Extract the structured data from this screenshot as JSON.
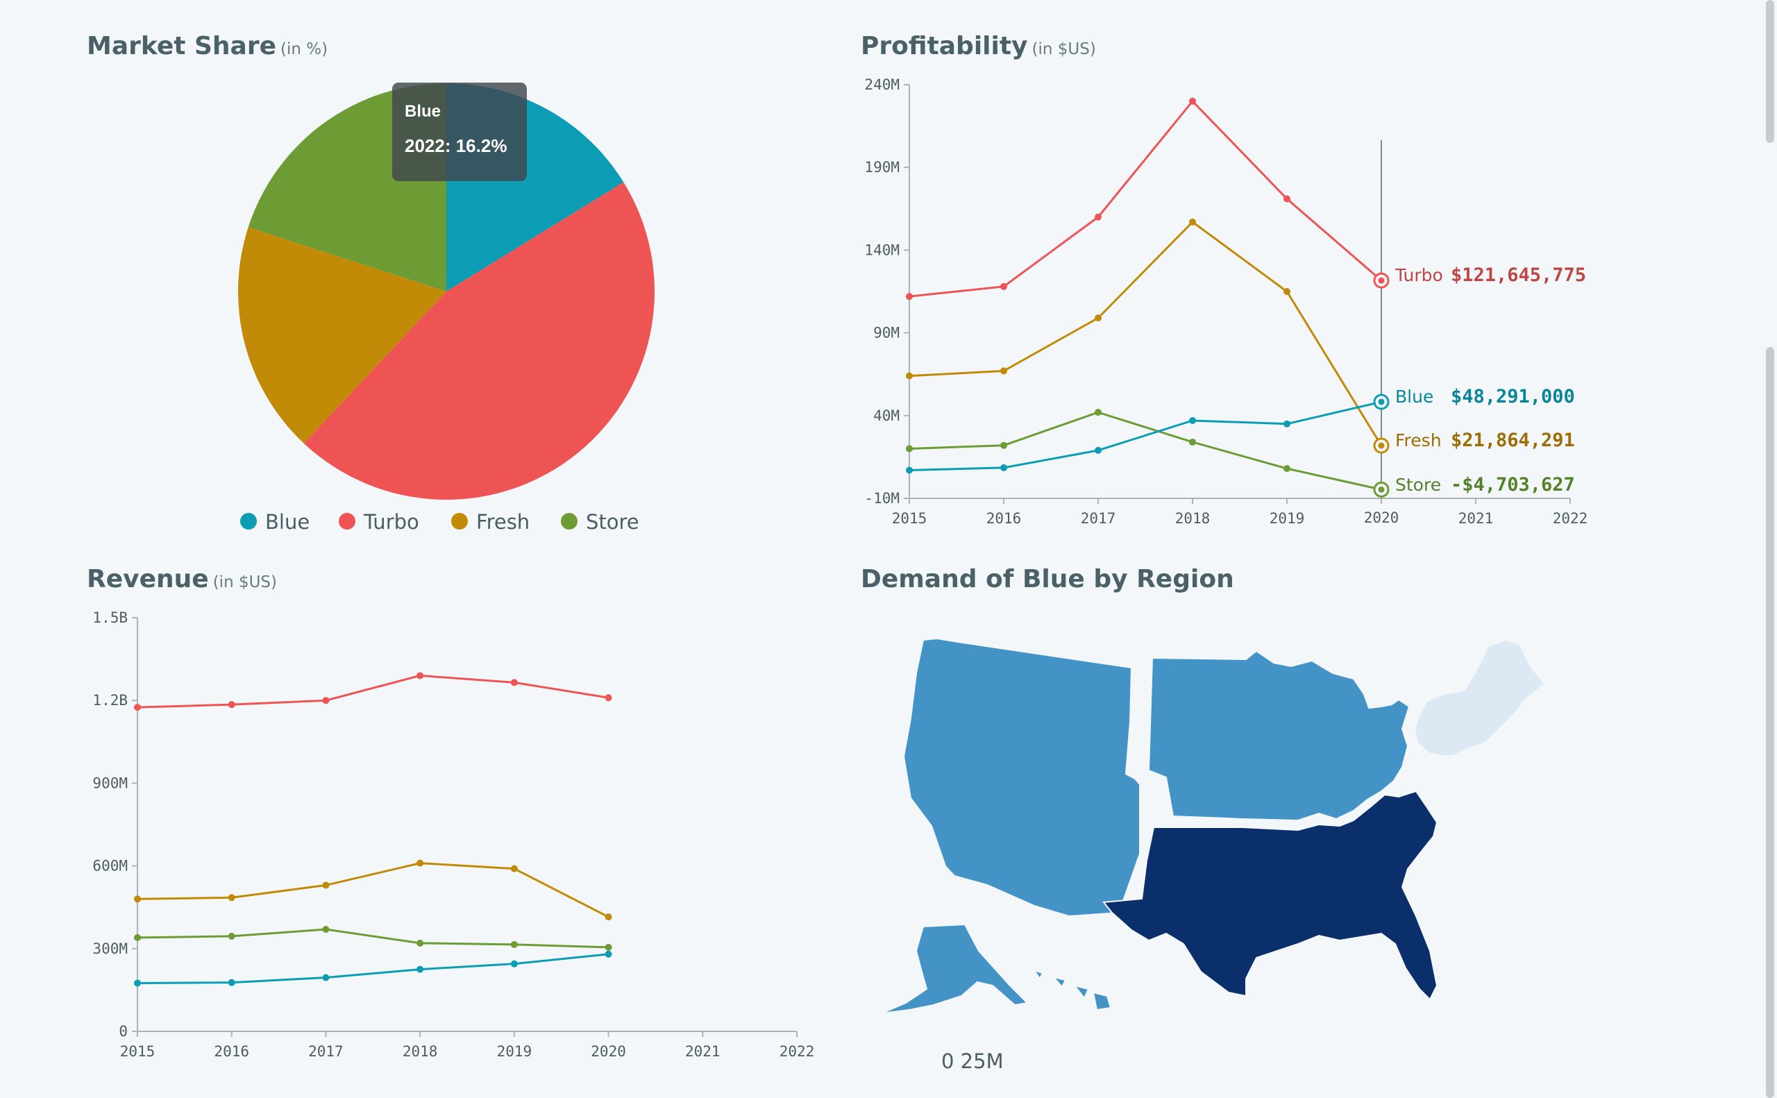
{
  "colors": {
    "Blue": "#0c9db5",
    "Turbo": "#ee5453",
    "Fresh": "#c18a07",
    "Store": "#6d9c34"
  },
  "market_share": {
    "title": "Market Share",
    "unit": "(in %)",
    "tooltip": {
      "series": "Blue",
      "text": "2022: 16.2%"
    },
    "legend": [
      "Blue",
      "Turbo",
      "Fresh",
      "Store"
    ]
  },
  "profitability": {
    "title": "Profitability",
    "unit": "(in $US)",
    "hover_year": "2020",
    "end_labels": [
      {
        "series": "Turbo",
        "name": "Turbo",
        "value": "$121,645,775"
      },
      {
        "series": "Blue",
        "name": "Blue",
        "value": "$48,291,000"
      },
      {
        "series": "Fresh",
        "name": "Fresh",
        "value": "$21,864,291"
      },
      {
        "series": "Store",
        "name": "Store",
        "value": "-$4,703,627"
      }
    ]
  },
  "revenue": {
    "title": "Revenue",
    "unit": "(in $US)"
  },
  "demand": {
    "title": "Demand of Blue by Region",
    "scale_label": "0  25M",
    "regions": [
      {
        "name": "West",
        "level": 0.55,
        "color": "#4393c6"
      },
      {
        "name": "Midwest",
        "level": 0.55,
        "color": "#4393c6"
      },
      {
        "name": "South",
        "level": 1.0,
        "color": "#0b2f6a"
      },
      {
        "name": "Northeast",
        "level": 0.1,
        "color": "#dce8f4"
      }
    ]
  },
  "chart_data": [
    {
      "type": "pie",
      "title": "Market Share",
      "unit": "%",
      "slices": [
        {
          "name": "Blue",
          "value": 16.2
        },
        {
          "name": "Turbo",
          "value": 45.8
        },
        {
          "name": "Fresh",
          "value": 18.0
        },
        {
          "name": "Store",
          "value": 20.0
        }
      ],
      "legend_position": "bottom"
    },
    {
      "type": "line",
      "title": "Profitability",
      "unit": "$US",
      "x": [
        2015,
        2016,
        2017,
        2018,
        2019,
        2020
      ],
      "x_ticks": [
        2015,
        2016,
        2017,
        2018,
        2019,
        2020,
        2021,
        2022
      ],
      "xlim": [
        2015,
        2022
      ],
      "ylim": [
        -10000000,
        240000000
      ],
      "y_ticks": [
        -10000000,
        40000000,
        90000000,
        140000000,
        190000000,
        240000000
      ],
      "y_tick_labels": [
        "-10M",
        "40M",
        "90M",
        "140M",
        "190M",
        "240M"
      ],
      "series": [
        {
          "name": "Turbo",
          "values": [
            112000000,
            118000000,
            160000000,
            230000000,
            171000000,
            121645775
          ]
        },
        {
          "name": "Fresh",
          "values": [
            64000000,
            67000000,
            99000000,
            157000000,
            115000000,
            21864291
          ]
        },
        {
          "name": "Store",
          "values": [
            20000000,
            22000000,
            42000000,
            24000000,
            8000000,
            -4703627
          ]
        },
        {
          "name": "Blue",
          "values": [
            7000000,
            8500000,
            19000000,
            37000000,
            35000000,
            48291000
          ]
        }
      ],
      "grid": false
    },
    {
      "type": "line",
      "title": "Revenue",
      "unit": "$US",
      "x": [
        2015,
        2016,
        2017,
        2018,
        2019,
        2020
      ],
      "x_ticks": [
        2015,
        2016,
        2017,
        2018,
        2019,
        2020,
        2021,
        2022
      ],
      "xlim": [
        2015,
        2022
      ],
      "ylim": [
        0,
        1500000000
      ],
      "y_ticks": [
        0,
        300000000,
        600000000,
        900000000,
        1200000000,
        1500000000
      ],
      "y_tick_labels": [
        "0",
        "300M",
        "600M",
        "900M",
        "1.2B",
        "1.5B"
      ],
      "series": [
        {
          "name": "Turbo",
          "values": [
            1175000000,
            1185000000,
            1200000000,
            1290000000,
            1265000000,
            1210000000
          ]
        },
        {
          "name": "Fresh",
          "values": [
            480000000,
            485000000,
            530000000,
            610000000,
            590000000,
            415000000
          ]
        },
        {
          "name": "Store",
          "values": [
            340000000,
            345000000,
            370000000,
            320000000,
            315000000,
            305000000
          ]
        },
        {
          "name": "Blue",
          "values": [
            175000000,
            177000000,
            195000000,
            225000000,
            245000000,
            280000000
          ]
        }
      ],
      "grid": false
    }
  ]
}
